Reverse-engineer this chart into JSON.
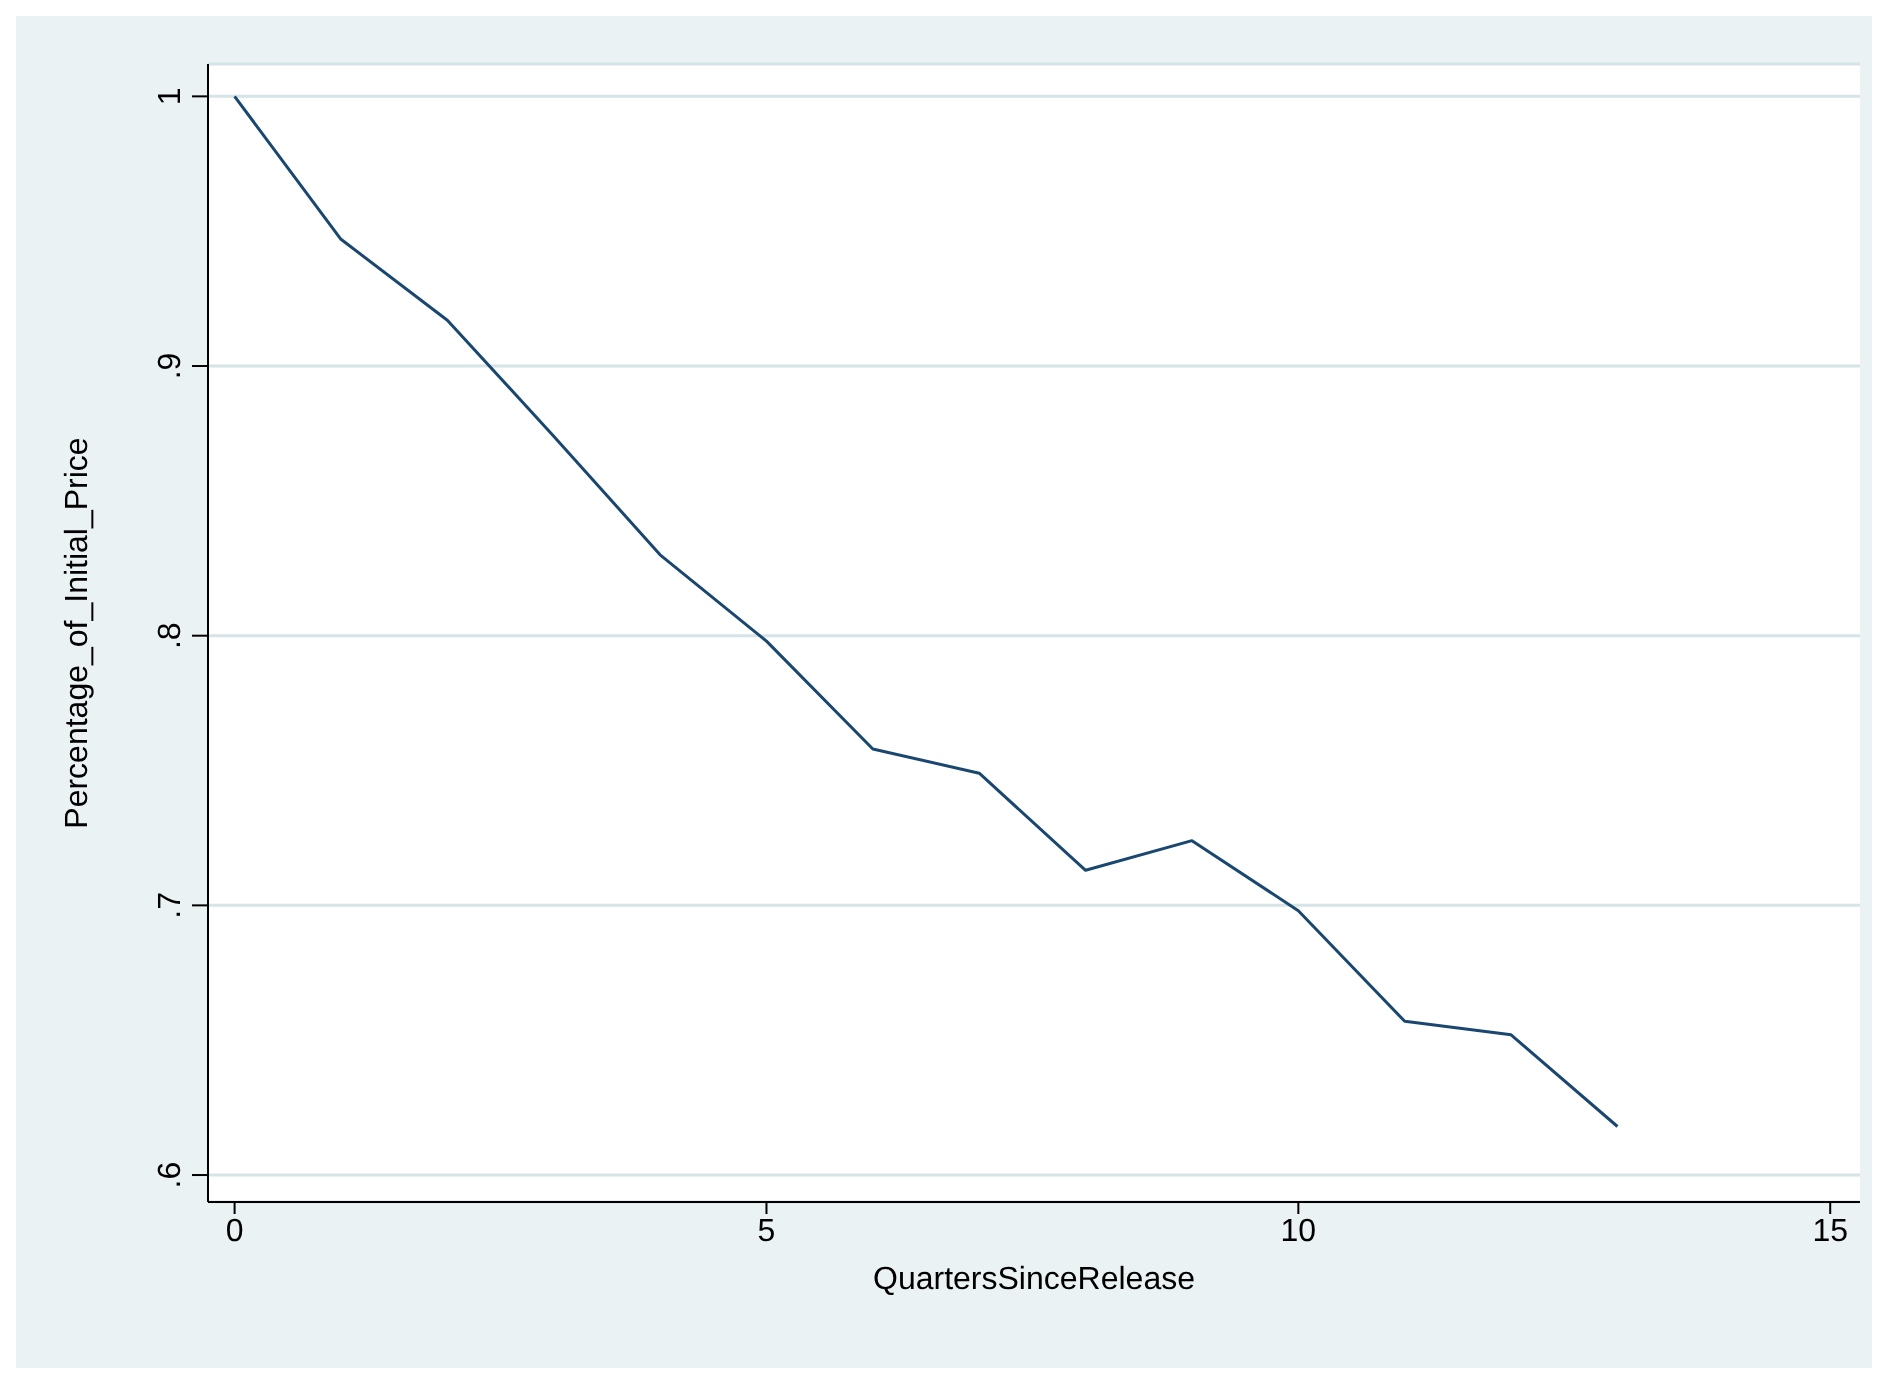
{
  "chart_data": {
    "type": "line",
    "xlabel": "QuartersSinceRelease",
    "ylabel": "Percentage_of_Initial_Price",
    "x": [
      0,
      1,
      2,
      3,
      4,
      5,
      6,
      7,
      8,
      9,
      10,
      11,
      12,
      13
    ],
    "series": [
      {
        "color": "#1a476f",
        "values": [
          1.0,
          0.947,
          0.917,
          0.874,
          0.83,
          0.798,
          0.758,
          0.749,
          0.713,
          0.724,
          0.698,
          0.657,
          0.652,
          0.618
        ]
      }
    ],
    "xlim": [
      -0.25,
      15.28
    ],
    "xticks": [
      0,
      5,
      10,
      15
    ],
    "ylim": [
      0.59,
      1.012
    ],
    "yticks": [
      1,
      {
        "value": 0.9,
        "label": ".9"
      },
      {
        "value": 0.8,
        "label": ".8"
      },
      {
        "value": 0.7,
        "label": ".7"
      },
      {
        "value": 0.6,
        "label": ".6"
      }
    ],
    "grid": "y",
    "marker": "none",
    "line_style": "solid",
    "legend": false
  }
}
